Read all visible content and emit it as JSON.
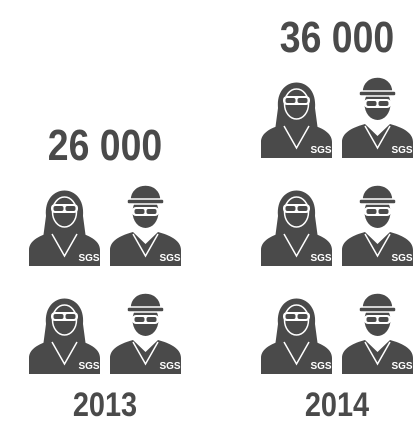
{
  "chart_data": {
    "type": "pictograph",
    "categories": [
      "2013",
      "2014"
    ],
    "values": [
      26000,
      36000
    ],
    "value_labels": [
      "26 000",
      "36 000"
    ],
    "icon_label": "SGS",
    "color": "#4a4a4a"
  }
}
